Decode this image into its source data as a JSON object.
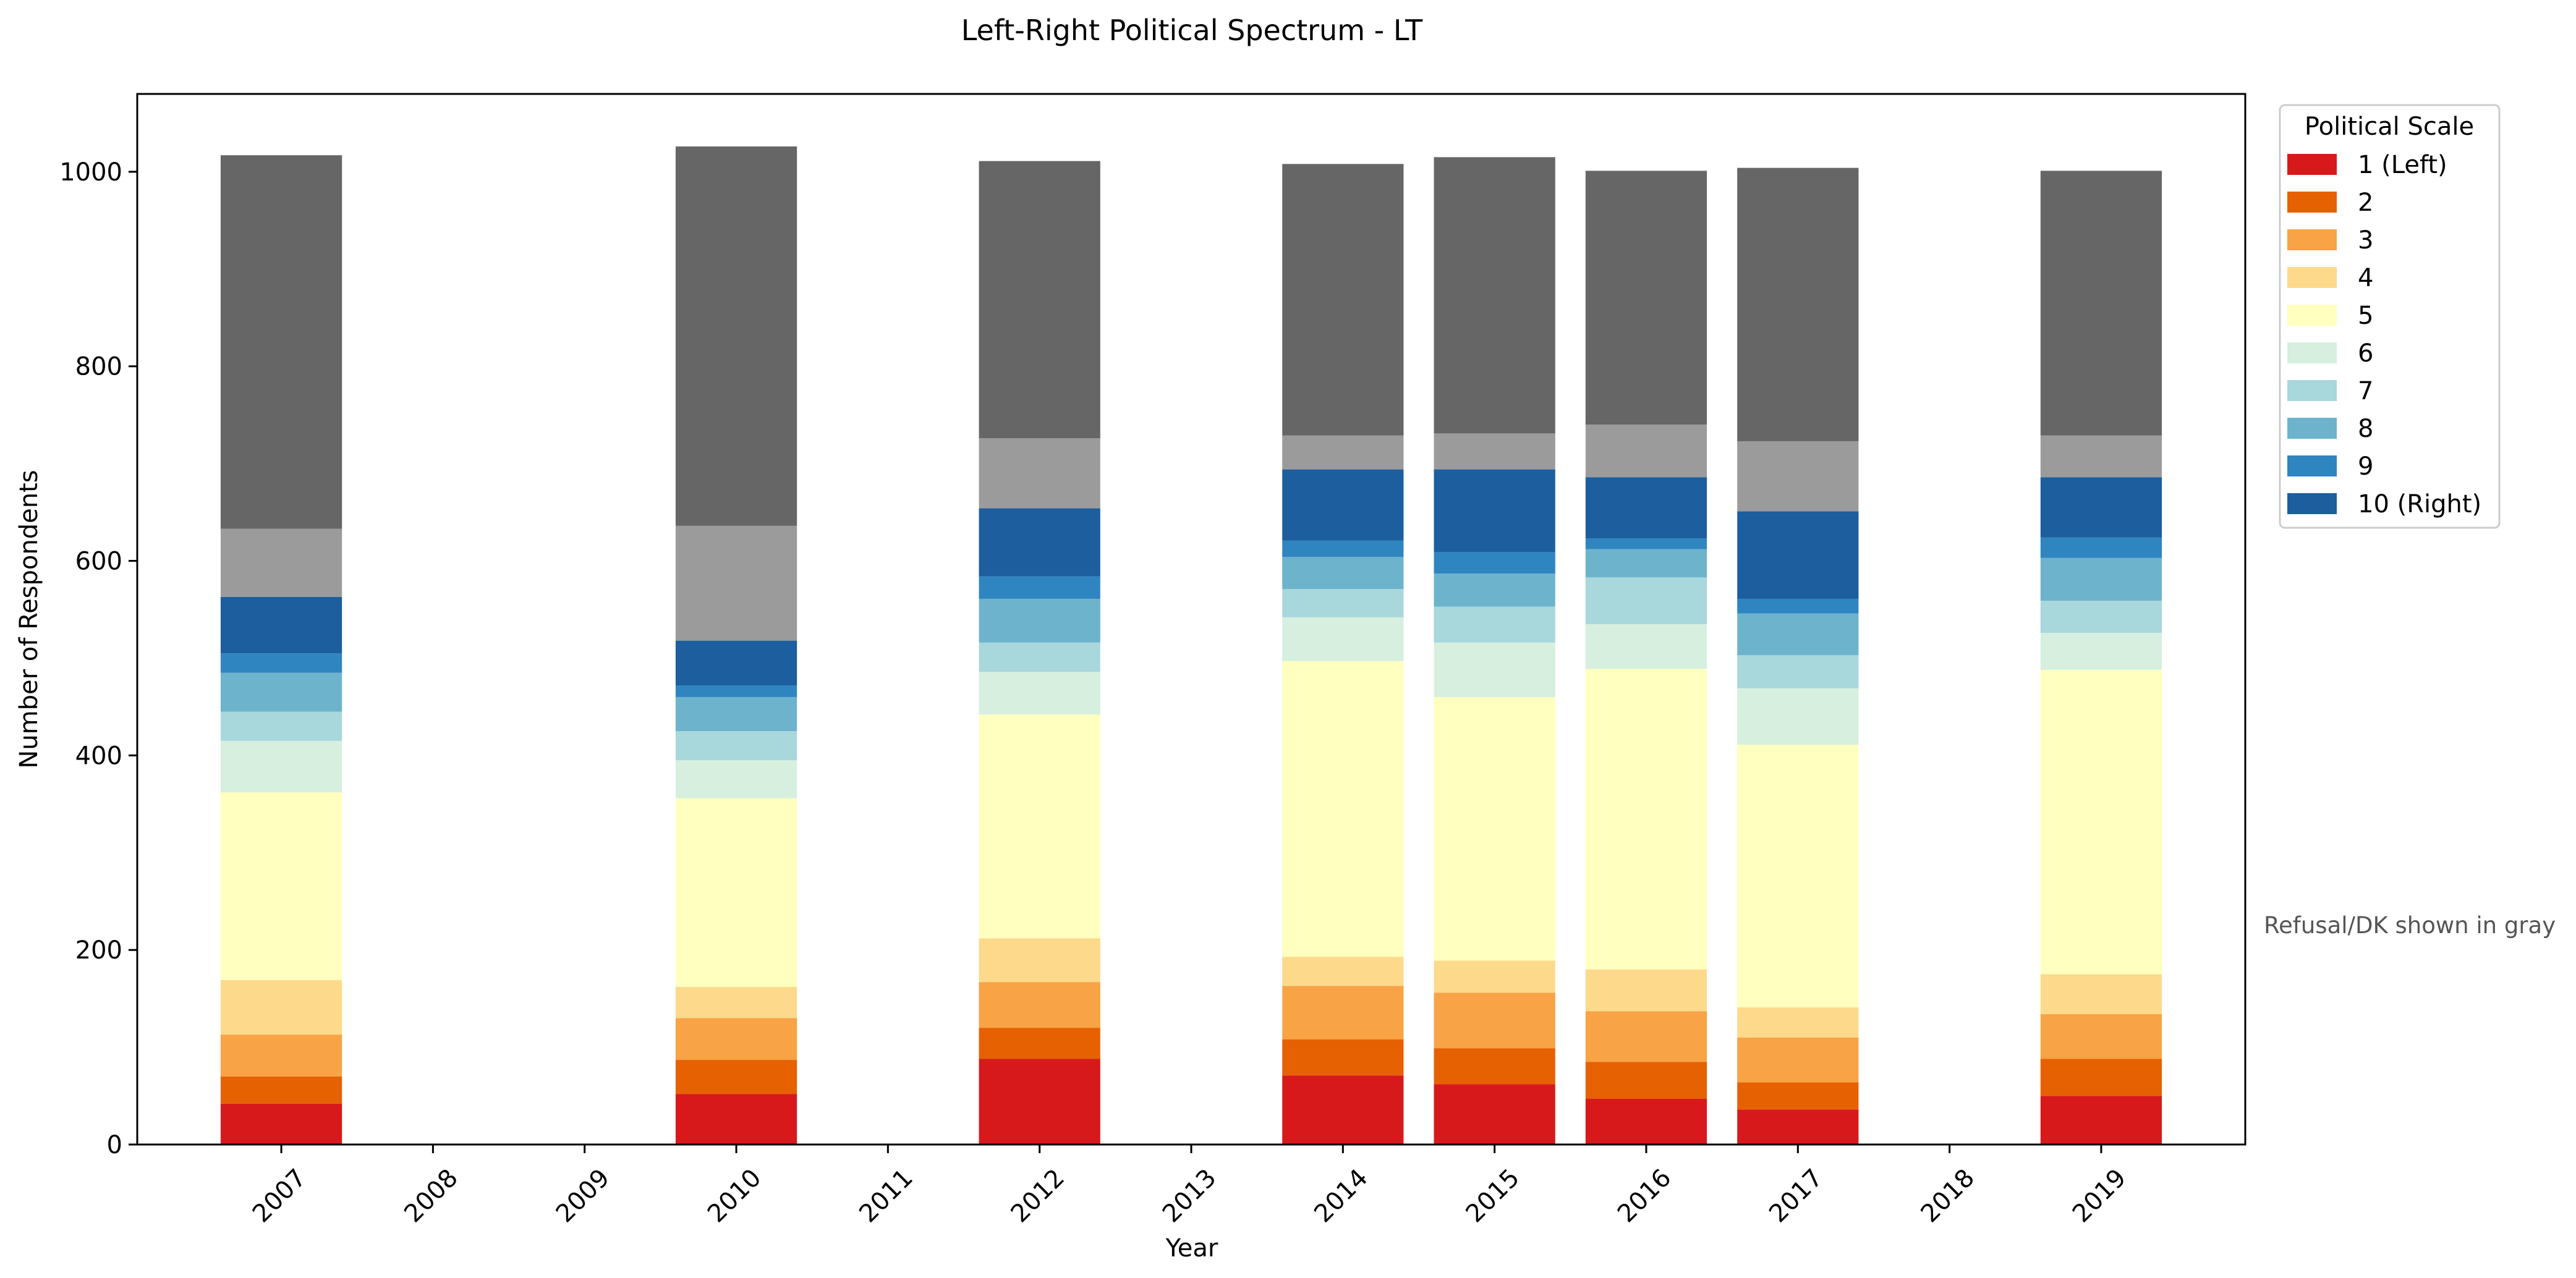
{
  "chart_data": {
    "type": "bar",
    "stacked": true,
    "title": "Left-Right Political Spectrum - LT",
    "xlabel": "Year",
    "ylabel": "Number of Respondents",
    "ylim": [
      0,
      1080
    ],
    "yticks": [
      0,
      200,
      400,
      600,
      800,
      1000
    ],
    "categories": [
      "2007",
      "2008",
      "2009",
      "2010",
      "2011",
      "2012",
      "2013",
      "2014",
      "2015",
      "2016",
      "2017",
      "2018",
      "2019"
    ],
    "legend": {
      "title": "Political Scale",
      "placement": "outside-top-right"
    },
    "note": "Refusal/DK shown in gray",
    "grid": false,
    "series": [
      {
        "name": "1 (Left)",
        "color": "#d7191c",
        "values": [
          42,
          0,
          0,
          52,
          0,
          88,
          0,
          71,
          62,
          47,
          36,
          0,
          50
        ]
      },
      {
        "name": "2",
        "color": "#e66101",
        "values": [
          28,
          0,
          0,
          35,
          0,
          32,
          0,
          37,
          37,
          38,
          28,
          0,
          38
        ]
      },
      {
        "name": "3",
        "color": "#f8a345",
        "values": [
          43,
          0,
          0,
          43,
          0,
          47,
          0,
          55,
          57,
          52,
          46,
          0,
          46
        ]
      },
      {
        "name": "4",
        "color": "#fdd98b",
        "values": [
          56,
          0,
          0,
          32,
          0,
          45,
          0,
          30,
          33,
          43,
          31,
          0,
          41
        ]
      },
      {
        "name": "5",
        "color": "#ffffbf",
        "values": [
          193,
          0,
          0,
          194,
          0,
          230,
          0,
          304,
          271,
          309,
          270,
          0,
          313
        ]
      },
      {
        "name": "6",
        "color": "#d6efdf",
        "values": [
          53,
          0,
          0,
          39,
          0,
          44,
          0,
          45,
          56,
          46,
          58,
          0,
          38
        ]
      },
      {
        "name": "7",
        "color": "#a8d7dc",
        "values": [
          30,
          0,
          0,
          30,
          0,
          30,
          0,
          29,
          37,
          48,
          34,
          0,
          33
        ]
      },
      {
        "name": "8",
        "color": "#6db3cc",
        "values": [
          40,
          0,
          0,
          35,
          0,
          45,
          0,
          33,
          34,
          29,
          43,
          0,
          44
        ]
      },
      {
        "name": "9",
        "color": "#2f85c0",
        "values": [
          20,
          0,
          0,
          12,
          0,
          23,
          0,
          17,
          22,
          11,
          15,
          0,
          21
        ]
      },
      {
        "name": "10 (Right)",
        "color": "#1c5e9e",
        "values": [
          58,
          0,
          0,
          46,
          0,
          70,
          0,
          73,
          85,
          63,
          90,
          0,
          62
        ]
      },
      {
        "name": "",
        "color": "#9b9b9b",
        "legend": false,
        "values": [
          70,
          0,
          0,
          118,
          0,
          72,
          0,
          35,
          37,
          54,
          72,
          0,
          43
        ]
      },
      {
        "name": "",
        "color": "#666666",
        "legend": false,
        "values": [
          384,
          0,
          0,
          390,
          0,
          285,
          0,
          279,
          284,
          261,
          281,
          0,
          272
        ]
      }
    ]
  }
}
